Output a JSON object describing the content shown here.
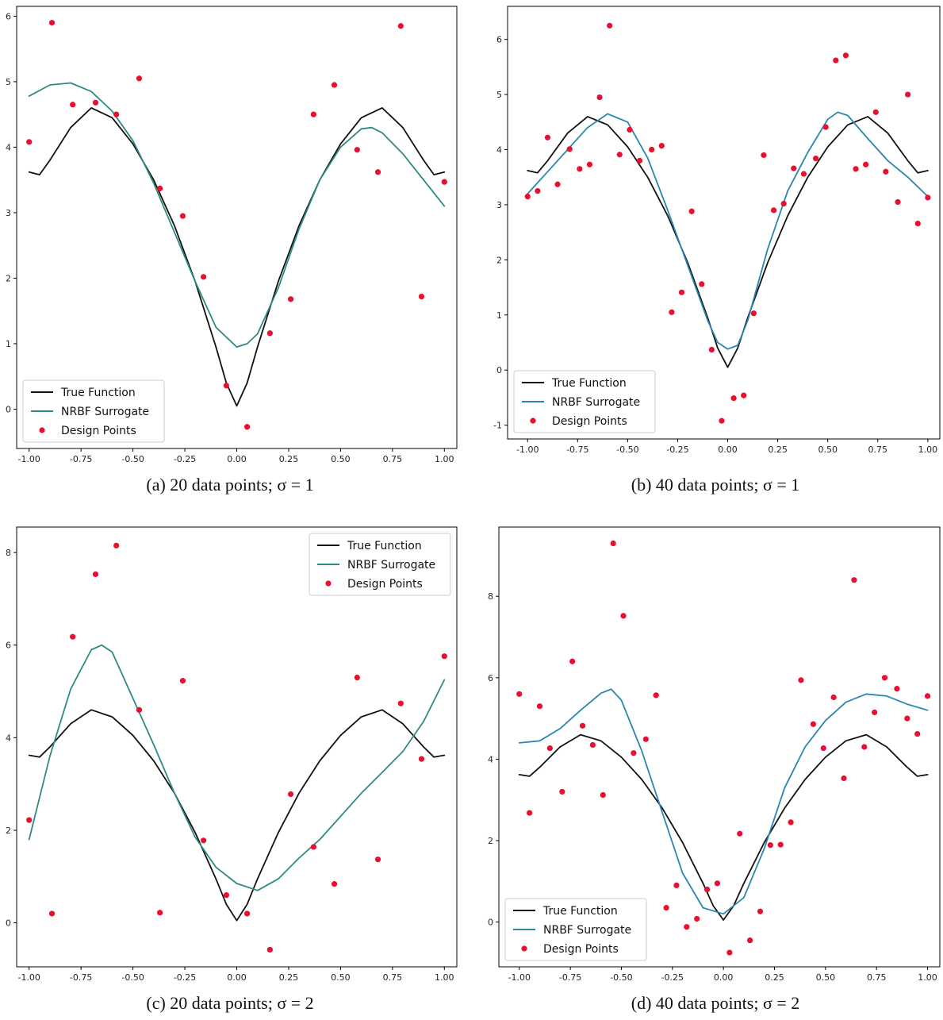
{
  "colors": {
    "true_function": "#111111",
    "surrogate_a": "#2f8a84",
    "surrogate_b": "#2a86ad",
    "design_points": "#ea0f2e"
  },
  "legend_labels": {
    "true": "True Function",
    "surrogate": "NRBF Surrogate",
    "points": "Design Points"
  },
  "chart_data": [
    {
      "type": "line",
      "caption": "(a) 20 data points; σ = 1",
      "xlim": [
        -1.06,
        1.06
      ],
      "ylim": [
        -0.6,
        6.15
      ],
      "xticks": [
        "-1.00",
        "-0.75",
        "-0.50",
        "-0.25",
        "0.00",
        "0.25",
        "0.50",
        "0.75",
        "1.00"
      ],
      "yticks": [
        "0",
        "1",
        "2",
        "3",
        "4",
        "5",
        "6"
      ],
      "grid": false,
      "legend_position": "bottom-left",
      "series": [
        {
          "name": "True Function",
          "style": "line",
          "color": "#111111",
          "x": [
            -1,
            -0.95,
            -0.9,
            -0.8,
            -0.7,
            -0.6,
            -0.5,
            -0.4,
            -0.3,
            -0.2,
            -0.1,
            -0.05,
            0,
            0.05,
            0.1,
            0.2,
            0.3,
            0.4,
            0.5,
            0.6,
            0.7,
            0.8,
            0.9,
            0.95,
            1
          ],
          "y": [
            3.62,
            3.58,
            3.8,
            4.3,
            4.6,
            4.45,
            4.05,
            3.5,
            2.8,
            1.95,
            0.95,
            0.4,
            0.05,
            0.4,
            0.95,
            1.95,
            2.8,
            3.5,
            4.05,
            4.45,
            4.6,
            4.3,
            3.8,
            3.58,
            3.62
          ]
        },
        {
          "name": "NRBF Surrogate",
          "style": "line",
          "color": "#2f8a84",
          "x": [
            -1,
            -0.9,
            -0.8,
            -0.7,
            -0.6,
            -0.5,
            -0.4,
            -0.3,
            -0.2,
            -0.1,
            0,
            0.05,
            0.1,
            0.2,
            0.3,
            0.4,
            0.5,
            0.6,
            0.65,
            0.7,
            0.8,
            0.9,
            1
          ],
          "y": [
            4.78,
            4.95,
            4.98,
            4.85,
            4.55,
            4.1,
            3.45,
            2.7,
            1.95,
            1.25,
            0.95,
            1.0,
            1.15,
            1.85,
            2.75,
            3.5,
            4.0,
            4.28,
            4.3,
            4.22,
            3.9,
            3.5,
            3.1
          ]
        },
        {
          "name": "Design Points",
          "style": "points",
          "color": "#ea0f2e",
          "x": [
            -1.0,
            -0.89,
            -0.79,
            -0.68,
            -0.58,
            -0.47,
            -0.37,
            -0.26,
            -0.16,
            -0.05,
            0.05,
            0.16,
            0.26,
            0.37,
            0.47,
            0.58,
            0.68,
            0.79,
            0.89,
            1.0
          ],
          "y": [
            4.08,
            5.9,
            4.65,
            4.68,
            4.5,
            5.05,
            3.37,
            2.95,
            2.02,
            0.36,
            -0.27,
            1.16,
            1.68,
            4.5,
            4.95,
            3.96,
            3.62,
            5.85,
            1.72,
            3.47
          ]
        }
      ]
    },
    {
      "type": "line",
      "caption": "(b) 40 data points; σ = 1",
      "xlim": [
        -1.1,
        1.06
      ],
      "ylim": [
        -1.25,
        6.6
      ],
      "xticks": [
        "-1.00",
        "-0.75",
        "-0.50",
        "-0.25",
        "0.00",
        "0.25",
        "0.50",
        "0.75",
        "1.00"
      ],
      "yticks": [
        "-1",
        "0",
        "1",
        "2",
        "3",
        "4",
        "5",
        "6"
      ],
      "grid": false,
      "legend_position": "bottom-left",
      "series": [
        {
          "name": "True Function",
          "style": "line",
          "color": "#111111",
          "x": [
            -1,
            -0.95,
            -0.9,
            -0.8,
            -0.7,
            -0.6,
            -0.5,
            -0.4,
            -0.3,
            -0.2,
            -0.1,
            -0.05,
            0,
            0.05,
            0.1,
            0.2,
            0.3,
            0.4,
            0.5,
            0.6,
            0.7,
            0.8,
            0.9,
            0.95,
            1
          ],
          "y": [
            3.62,
            3.58,
            3.8,
            4.3,
            4.6,
            4.45,
            4.05,
            3.5,
            2.8,
            1.95,
            0.95,
            0.4,
            0.05,
            0.4,
            0.95,
            1.95,
            2.8,
            3.5,
            4.05,
            4.45,
            4.6,
            4.3,
            3.8,
            3.58,
            3.62
          ]
        },
        {
          "name": "NRBF Surrogate",
          "style": "line",
          "color": "#2a86ad",
          "x": [
            -1,
            -0.9,
            -0.8,
            -0.7,
            -0.6,
            -0.5,
            -0.4,
            -0.3,
            -0.2,
            -0.1,
            -0.05,
            0,
            0.05,
            0.1,
            0.2,
            0.3,
            0.4,
            0.5,
            0.55,
            0.6,
            0.7,
            0.8,
            0.9,
            1
          ],
          "y": [
            3.2,
            3.6,
            4.0,
            4.4,
            4.65,
            4.5,
            3.85,
            2.9,
            1.9,
            0.9,
            0.5,
            0.38,
            0.45,
            0.9,
            2.2,
            3.25,
            3.95,
            4.55,
            4.68,
            4.62,
            4.2,
            3.8,
            3.5,
            3.15
          ]
        },
        {
          "name": "Design Points",
          "style": "points",
          "color": "#ea0f2e",
          "x": [
            -1.0,
            -0.95,
            -0.9,
            -0.85,
            -0.79,
            -0.74,
            -0.69,
            -0.64,
            -0.59,
            -0.54,
            -0.49,
            -0.44,
            -0.38,
            -0.33,
            -0.28,
            -0.23,
            -0.18,
            -0.13,
            -0.08,
            -0.03,
            0.03,
            0.08,
            0.13,
            0.18,
            0.23,
            0.28,
            0.33,
            0.38,
            0.44,
            0.49,
            0.54,
            0.59,
            0.64,
            0.69,
            0.74,
            0.79,
            0.85,
            0.9,
            0.95,
            1.0
          ],
          "y": [
            3.15,
            3.25,
            4.22,
            3.37,
            4.01,
            3.65,
            3.73,
            4.95,
            6.25,
            3.91,
            4.36,
            3.8,
            4.0,
            4.07,
            1.05,
            1.41,
            2.88,
            1.56,
            0.37,
            -0.92,
            -0.51,
            -0.46,
            1.03,
            3.9,
            2.9,
            3.02,
            3.66,
            3.56,
            3.84,
            4.41,
            5.62,
            5.71,
            3.65,
            3.73,
            4.68,
            3.6,
            3.05,
            5.0,
            2.66,
            3.13
          ]
        }
      ]
    },
    {
      "type": "line",
      "caption": "(c) 20 data points; σ = 2",
      "xlim": [
        -1.06,
        1.06
      ],
      "ylim": [
        -0.95,
        8.55
      ],
      "xticks": [
        "-1.00",
        "-0.75",
        "-0.50",
        "-0.25",
        "0.00",
        "0.25",
        "0.50",
        "0.75",
        "1.00"
      ],
      "yticks": [
        "0",
        "2",
        "4",
        "6",
        "8"
      ],
      "grid": false,
      "legend_position": "top-right",
      "series": [
        {
          "name": "True Function",
          "style": "line",
          "color": "#111111",
          "x": [
            -1,
            -0.95,
            -0.9,
            -0.8,
            -0.7,
            -0.6,
            -0.5,
            -0.4,
            -0.3,
            -0.2,
            -0.1,
            -0.05,
            0,
            0.05,
            0.1,
            0.2,
            0.3,
            0.4,
            0.5,
            0.6,
            0.7,
            0.8,
            0.9,
            0.95,
            1
          ],
          "y": [
            3.62,
            3.58,
            3.8,
            4.3,
            4.6,
            4.45,
            4.05,
            3.5,
            2.8,
            1.95,
            0.95,
            0.4,
            0.05,
            0.4,
            0.95,
            1.95,
            2.8,
            3.5,
            4.05,
            4.45,
            4.6,
            4.3,
            3.8,
            3.58,
            3.62
          ]
        },
        {
          "name": "NRBF Surrogate",
          "style": "line",
          "color": "#2f8a84",
          "x": [
            -1,
            -0.9,
            -0.8,
            -0.7,
            -0.65,
            -0.6,
            -0.5,
            -0.4,
            -0.3,
            -0.2,
            -0.1,
            0,
            0.1,
            0.2,
            0.3,
            0.4,
            0.5,
            0.6,
            0.7,
            0.8,
            0.9,
            1
          ],
          "y": [
            1.8,
            3.6,
            5.05,
            5.9,
            6.0,
            5.85,
            4.85,
            3.85,
            2.8,
            1.85,
            1.2,
            0.85,
            0.7,
            0.95,
            1.4,
            1.8,
            2.3,
            2.8,
            3.25,
            3.7,
            4.35,
            5.25
          ]
        },
        {
          "name": "Design Points",
          "style": "points",
          "color": "#ea0f2e",
          "x": [
            -1.0,
            -0.89,
            -0.79,
            -0.68,
            -0.58,
            -0.47,
            -0.37,
            -0.26,
            -0.16,
            -0.05,
            0.05,
            0.16,
            0.26,
            0.37,
            0.47,
            0.58,
            0.68,
            0.79,
            0.89,
            1.0
          ],
          "y": [
            2.22,
            0.2,
            6.18,
            7.53,
            8.15,
            4.6,
            0.22,
            5.23,
            1.78,
            0.6,
            0.2,
            -0.58,
            2.78,
            1.64,
            0.84,
            5.3,
            1.37,
            4.74,
            3.54,
            5.76
          ]
        }
      ]
    },
    {
      "type": "line",
      "caption": "(d) 40 data points; σ = 2",
      "xlim": [
        -1.1,
        1.06
      ],
      "ylim": [
        -1.1,
        9.7
      ],
      "xticks": [
        "-1.00",
        "-0.75",
        "-0.50",
        "-0.25",
        "0.00",
        "0.25",
        "0.50",
        "0.75",
        "1.00"
      ],
      "yticks": [
        "0",
        "2",
        "4",
        "6",
        "8"
      ],
      "grid": false,
      "legend_position": "bottom-left",
      "series": [
        {
          "name": "True Function",
          "style": "line",
          "color": "#111111",
          "x": [
            -1,
            -0.95,
            -0.9,
            -0.8,
            -0.7,
            -0.6,
            -0.5,
            -0.4,
            -0.3,
            -0.2,
            -0.1,
            -0.05,
            0,
            0.05,
            0.1,
            0.2,
            0.3,
            0.4,
            0.5,
            0.6,
            0.7,
            0.8,
            0.9,
            0.95,
            1
          ],
          "y": [
            3.62,
            3.58,
            3.8,
            4.3,
            4.6,
            4.45,
            4.05,
            3.5,
            2.8,
            1.95,
            0.95,
            0.4,
            0.05,
            0.4,
            0.95,
            1.95,
            2.8,
            3.5,
            4.05,
            4.45,
            4.6,
            4.3,
            3.8,
            3.58,
            3.62
          ]
        },
        {
          "name": "NRBF Surrogate",
          "style": "line",
          "color": "#2a86ad",
          "x": [
            -1,
            -0.9,
            -0.8,
            -0.7,
            -0.6,
            -0.55,
            -0.5,
            -0.4,
            -0.3,
            -0.2,
            -0.1,
            0,
            0.1,
            0.2,
            0.3,
            0.4,
            0.5,
            0.6,
            0.7,
            0.8,
            0.9,
            1
          ],
          "y": [
            4.4,
            4.45,
            4.75,
            5.2,
            5.62,
            5.72,
            5.45,
            4.2,
            2.7,
            1.2,
            0.35,
            0.2,
            0.6,
            1.8,
            3.3,
            4.3,
            4.95,
            5.4,
            5.6,
            5.55,
            5.35,
            5.2
          ]
        },
        {
          "name": "Design Points",
          "style": "points",
          "color": "#ea0f2e",
          "x": [
            -1.0,
            -0.95,
            -0.9,
            -0.85,
            -0.79,
            -0.74,
            -0.69,
            -0.64,
            -0.59,
            -0.54,
            -0.49,
            -0.44,
            -0.38,
            -0.33,
            -0.28,
            -0.23,
            -0.18,
            -0.13,
            -0.08,
            -0.03,
            0.03,
            0.08,
            0.13,
            0.18,
            0.23,
            0.28,
            0.33,
            0.38,
            0.44,
            0.49,
            0.54,
            0.59,
            0.64,
            0.69,
            0.74,
            0.79,
            0.85,
            0.9,
            0.95,
            1.0
          ],
          "y": [
            5.6,
            2.68,
            5.3,
            4.27,
            3.2,
            6.4,
            4.82,
            4.35,
            3.12,
            9.3,
            7.52,
            4.15,
            4.49,
            5.57,
            0.35,
            0.9,
            -0.12,
            0.08,
            0.8,
            0.95,
            -0.75,
            2.17,
            -0.45,
            0.26,
            1.89,
            1.9,
            2.45,
            5.94,
            4.86,
            4.27,
            5.52,
            3.53,
            8.4,
            4.3,
            5.15,
            6.0,
            5.73,
            5.0,
            4.62,
            5.55
          ]
        }
      ]
    }
  ]
}
